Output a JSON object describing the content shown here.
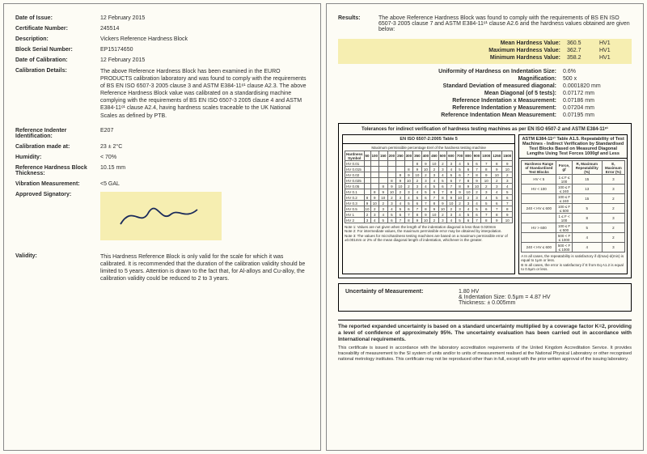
{
  "left": {
    "rows": [
      {
        "label": "Date of Issue:",
        "value": "12 February 2015"
      },
      {
        "label": "Certificate Number:",
        "value": "245514"
      },
      {
        "label": "Description:",
        "value": "Vickers Reference Hardness Block"
      },
      {
        "label": "Block Serial Number:",
        "value": "EP15174650"
      },
      {
        "label": "Date of Calibration:",
        "value": "12 February 2015"
      }
    ],
    "calib_label": "Calibration Details:",
    "calib_text": "The above Reference Hardness Block has been examined in the EURO PRODUCTS calibration laboratory and was found to comply with the requirements of BS EN ISO 6507-3 2005 clause 3 and ASTM E384-11ᵉ¹ clause A2.3. The above Reference Hardness Block value was calibrated on a standardising machine complying with the requirements of BS EN ISO 6507-3 2005 clause 4 and ASTM E384-11ᵉ¹ clause A2.4, having hardness scales traceable to the UK National Scales as defined by PTB.",
    "rows2": [
      {
        "label": "Reference Indenter Identification:",
        "value": "E207"
      },
      {
        "label": "Calibration made at:",
        "value": "23 ± 2°C"
      },
      {
        "label": "Humidity:",
        "value": "< 70%"
      },
      {
        "label": "Reference Hardness Block Thickness:",
        "value": "10.15 mm"
      },
      {
        "label": "Vibration Measurement:",
        "value": "<5 GAL"
      }
    ],
    "approved_label": "Approved Signatory:",
    "validity_label": "Validity:",
    "validity_text": "This Hardness Reference Block is only valid for the scale for which it was calibrated. It is recommended that the duration of the calibration validity should be limited to 5 years. Attention is drawn to the fact that, for Al-alloys and Cu-alloy, the calibration validity could be reduced to 2 to 3 years."
  },
  "right": {
    "results_label": "Results:",
    "results_text": "The above Reference Hardness Block was found to comply with the requirements of BS EN ISO 6507-3 2005 clause 7 and ASTM E384-11ᵉ¹ clause A2.6 and the hardness values obtained are given below:",
    "highlighted": [
      {
        "k": "Mean Hardness Value:",
        "v": "360.5",
        "u": "HV1"
      },
      {
        "k": "Maximum Hardness Value:",
        "v": "362.7",
        "u": "HV1"
      },
      {
        "k": "Minimum Hardness Value:",
        "v": "358.2",
        "u": "HV1"
      }
    ],
    "metrics": [
      {
        "k": "Uniformity of Hardness on Indentation Size:",
        "v": "0.6%"
      },
      {
        "k": "Magnification:",
        "v": "500 x"
      },
      {
        "k": "Standard Deviation of measured diagonal:",
        "v": "0.0001820 mm"
      },
      {
        "k": "Mean Diagonal (of 5 tests):",
        "v": "0.07172 mm"
      },
      {
        "k": "Reference Indentation x Measurement:",
        "v": "0.07186 mm"
      },
      {
        "k": "Reference Indentation y Measurement:",
        "v": "0.07204 mm"
      },
      {
        "k": "Reference Indentation Mean Measurement:",
        "v": "0.07195 mm"
      }
    ],
    "tol_title": "Tolerances for indirect verification of hardness testing machines as per EN ISO 6507-2 and ASTM E384-11ᵉ¹",
    "iso_hdr": "EN ISO 6507-2:2005 Table 5",
    "astm_hdr": "ASTM E384-11ᵉ¹ Table A1.5. Repeatability of Test Machines - Indirect Verification by Standardised Test Blocks Based on Measured Diagonal Lengths Using Test Forces 1000gf and Less",
    "iso_sub": "Maximum permissible percentage Erel of the hardness testing machine",
    "iso_rows": [
      "HV 0.01",
      "HV 0.015",
      "HV 0.02",
      "HV 0.025",
      "HV 0.05",
      "HV 0.1",
      "HV 0.2",
      "HV 0.3",
      "HV 0.5",
      "HV 1",
      "HV 2"
    ],
    "iso_cols": [
      "50",
      "100",
      "150",
      "200",
      "250",
      "300",
      "350",
      "400",
      "450",
      "500",
      "600",
      "700",
      "800",
      "900",
      "1000",
      "1250",
      "1500"
    ],
    "astm_rows": [
      {
        "r": "HV < 5",
        "f": "1 ≤ F ≤ 100",
        "rm": "15",
        "e": "3"
      },
      {
        "r": "HV < 100",
        "f": "100 ≤ F ≤ 240",
        "rm": "13",
        "e": "3"
      },
      {
        "r": "",
        "f": "100 ≤ F ≤ 240",
        "rm": "15",
        "e": "2"
      },
      {
        "r": "240 < HV ≤ 600",
        "f": "100 ≤ F ≤ 500",
        "rm": "5",
        "e": "2"
      },
      {
        "r": "",
        "f": "1 ≤ F < 100",
        "rm": "8",
        "e": "3"
      },
      {
        "r": "HV > 600",
        "f": "100 ≤ F ≤ 500",
        "rm": "5",
        "e": "2"
      },
      {
        "r": "",
        "f": "500 < F ≤ 1000",
        "rm": "4",
        "e": "2"
      },
      {
        "r": "240 < HV ≤ 600",
        "f": "500 < F ≤ 1000",
        "rm": "4",
        "e": "3"
      }
    ],
    "note1": "Note 1: Values are not given when the length of the indentation diagonal is less than 0.020mm",
    "note2": "Note 2: For intermediate values, the maximum permissible error may be obtained by interpolation.",
    "note3": "Note 3: The values for microhardness testing machines are based on a maximum permissible error of ±0.001mm or 2% of the mean diagonal length of indentation, whichever is the greater.",
    "astm_note1": "A In all cases, the repeatability is satisfactory if d(max)-d(min) is equal to 1μm or less.",
    "astm_note2": "B In all cases, the error is satisfactory if E from Eq A1.2 is equal to 0.5μm or less.",
    "uom_label": "Uncertainty of Measurement:",
    "uom_lines": [
      "1.80 HV",
      "& Indentation Size: 0.5μm = 4.87 HV",
      "Thickness: ± 0.005mm"
    ],
    "footer_bold": "The reported expanded uncertainty is based on a standard uncertainty multiplied by a coverage factor K=2, providing a level of confidence of approximately 95%. The uncertainty evaluation has been carried out in accordance with International requirements.",
    "footer_small": "This certificate is issued in accordance with the laboratory accreditation requirements of the United Kingdom Accreditation Service. It provides traceability of measurement to the SI system of units and/or to units of measurement realised at the National Physical Laboratory or other recognised national metrology institutes. This certificate may not be reproduced other than in full, except with the prior written approval of the issuing laboratory."
  }
}
